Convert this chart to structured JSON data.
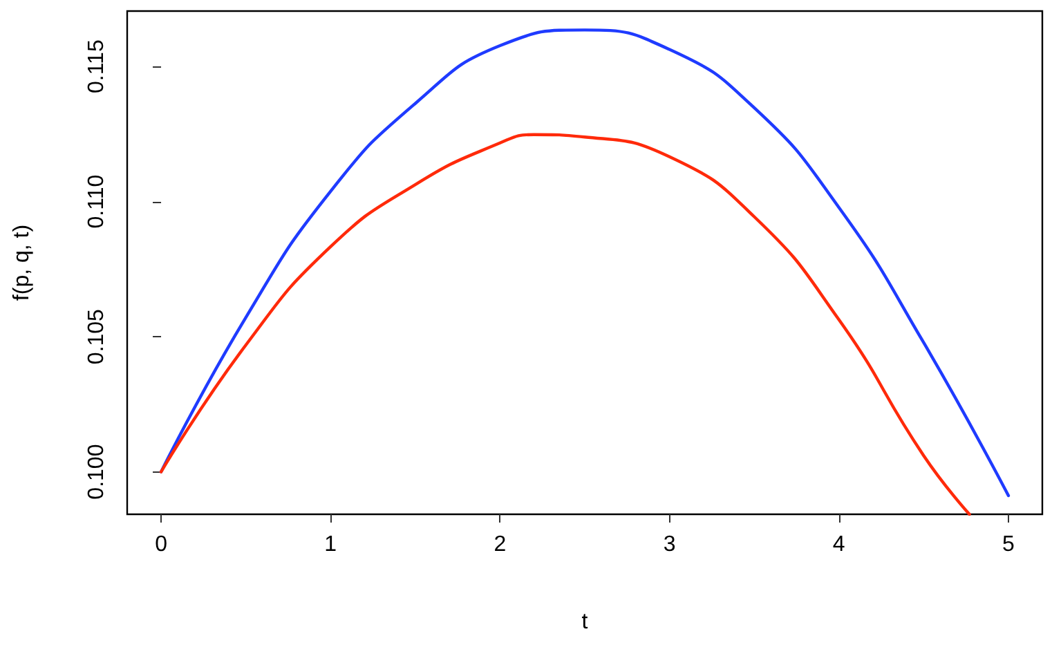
{
  "chart_data": {
    "type": "line",
    "xlabel": "t",
    "ylabel": "f(p, q, t)",
    "xlim": [
      -0.2,
      5.2
    ],
    "ylim": [
      0.09843,
      0.11705
    ],
    "xticks": [
      0,
      1,
      2,
      3,
      4,
      5
    ],
    "yticks": [
      {
        "value": 0.1,
        "label": "0.100"
      },
      {
        "value": 0.105,
        "label": "0.105"
      },
      {
        "value": 0.11,
        "label": "0.110"
      },
      {
        "value": 0.115,
        "label": "0.115"
      }
    ],
    "grid": false,
    "marker": "none",
    "line_style": "solid",
    "series": [
      {
        "color": "#1f3bff",
        "x": [
          0,
          0.5,
          1,
          1.5,
          2,
          2.5,
          3,
          3.5,
          4,
          4.5,
          5
        ],
        "values": [
          0.1,
          0.10571,
          0.11038,
          0.11363,
          0.11577,
          0.11635,
          0.11563,
          0.11347,
          0.10978,
          0.10478,
          0.09912
        ]
      },
      {
        "color": "#ff2a0a",
        "x": [
          0,
          0.5,
          1,
          1.5,
          2,
          2.2,
          2.5,
          3,
          3.5,
          4,
          4.5,
          4.77
        ],
        "values": [
          0.1,
          0.10469,
          0.10833,
          0.11063,
          0.11217,
          0.11248,
          0.11239,
          0.11166,
          0.10944,
          0.10563,
          0.1006,
          0.09843
        ]
      }
    ]
  }
}
